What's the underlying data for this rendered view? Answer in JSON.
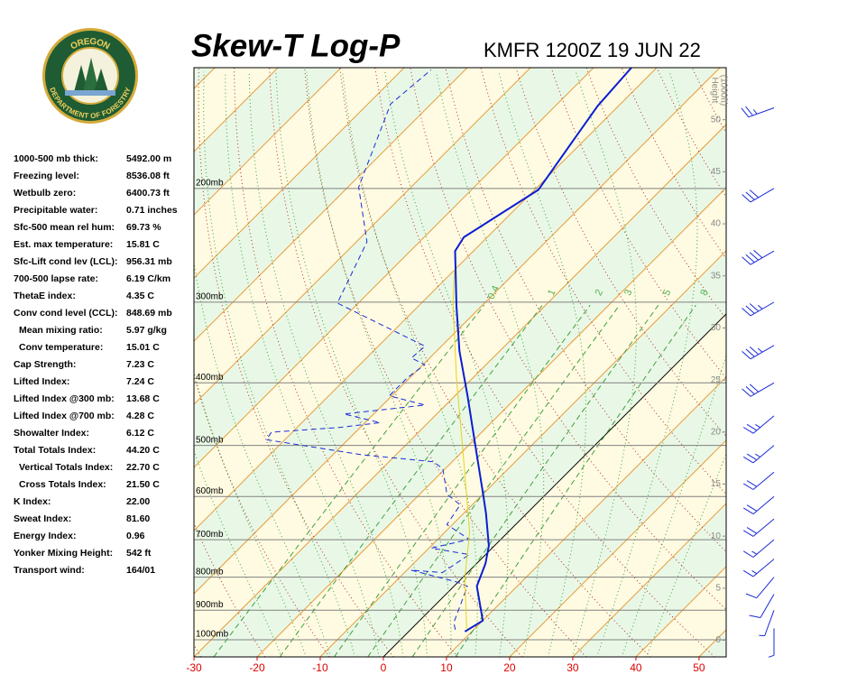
{
  "logo": {
    "top": "OREGON",
    "bottom": "DEPARTMENT OF FORESTRY"
  },
  "indices": [
    {
      "label": "1000-500 mb thick:",
      "value": "5492.00 m"
    },
    {
      "label": "Freezing level:",
      "value": "8536.08 ft"
    },
    {
      "label": "Wetbulb zero:",
      "value": "6400.73 ft"
    },
    {
      "label": "Precipitable water:",
      "value": "0.71 inches"
    },
    {
      "label": "Sfc-500 mean rel hum:",
      "value": "69.73 %"
    },
    {
      "label": "Est. max temperature:",
      "value": "15.81 C"
    },
    {
      "label": "Sfc-Lift cond lev (LCL):",
      "value": "956.31 mb"
    },
    {
      "label": "700-500 lapse rate:",
      "value": "6.19 C/km"
    },
    {
      "label": "ThetaE index:",
      "value": "4.35 C"
    },
    {
      "label": "Conv cond level (CCL):",
      "value": "848.69 mb"
    },
    {
      "label": "Mean mixing ratio:",
      "value": "5.97 g/kg",
      "indent": true
    },
    {
      "label": "Conv temperature:",
      "value": "15.01 C",
      "indent": true
    },
    {
      "label": "Cap Strength:",
      "value": "7.23 C"
    },
    {
      "label": "Lifted Index:",
      "value": "7.24 C"
    },
    {
      "label": "Lifted Index @300 mb:",
      "value": "13.68 C"
    },
    {
      "label": "Lifted Index @700 mb:",
      "value": "4.28 C"
    },
    {
      "label": "Showalter Index:",
      "value": "6.12 C"
    },
    {
      "label": "Total Totals Index:",
      "value": "44.20 C"
    },
    {
      "label": "Vertical Totals Index:",
      "value": "22.70 C",
      "indent": true
    },
    {
      "label": "Cross Totals Index:",
      "value": "21.50 C",
      "indent": true
    },
    {
      "label": "K Index:",
      "value": "22.00"
    },
    {
      "label": "Sweat Index:",
      "value": "81.60"
    },
    {
      "label": "Energy Index:",
      "value": "0.96"
    },
    {
      "label": "Yonker Mixing Height:",
      "value": "542 ft"
    },
    {
      "label": "Transport wind:",
      "value": "164/01"
    }
  ],
  "chart_data": {
    "type": "skewt",
    "title": "Skew-T Log-P",
    "subtitle": "KMFR 1200Z 19 JUN 22",
    "xlim": [
      -30,
      54.3
    ],
    "xticks": [
      -30,
      -20,
      -10,
      0,
      10,
      20,
      30,
      40,
      50
    ],
    "xtick_color": "#dd0000",
    "ylim": [
      1063,
      130
    ],
    "ylog": true,
    "yticks": [
      {
        "value": 1000,
        "label": "1000mb"
      },
      {
        "value": 900,
        "label": "900mb"
      },
      {
        "value": 800,
        "label": "800mb"
      },
      {
        "value": 700,
        "label": "700mb"
      },
      {
        "value": 600,
        "label": "600mb"
      },
      {
        "value": 500,
        "label": "500mb"
      },
      {
        "value": 400,
        "label": "400mb"
      },
      {
        "value": 300,
        "label": "300mb"
      },
      {
        "value": 200,
        "label": "200mb"
      }
    ],
    "y2label": [
      "Height",
      "(1000ft)"
    ],
    "y2lim": [
      -1.6,
      55
    ],
    "y2ticks": [
      0,
      5,
      10,
      15,
      20,
      25,
      30,
      35,
      40,
      45,
      50
    ],
    "mixing_ratio_labels": [
      0.4,
      1,
      2,
      3,
      5,
      8
    ],
    "series": [
      {
        "color": "#0a1ed2",
        "style": "solid",
        "width": 2,
        "pressure": [
          971,
          934,
          826,
          762,
          715,
          638,
          598,
          509,
          419,
          357,
          304,
          250,
          238,
          201,
          149,
          130
        ],
        "temperature": [
          8.9,
          10.0,
          3.6,
          1.4,
          -0.9,
          -6.4,
          -9.7,
          -18,
          -28,
          -36.4,
          -44,
          -52.9,
          -53.7,
          -49.4,
          -53.3,
          -54
        ]
      },
      {
        "color": "#1a2ad8",
        "style": "dashed",
        "width": 1,
        "pressure": [
          965,
          940,
          887,
          826,
          813,
          780,
          787,
          738,
          721,
          699,
          663,
          618,
          595,
          543,
          530,
          517,
          490,
          477,
          469,
          461,
          447,
          433,
          419,
          393,
          375,
          366,
          351,
          301,
          242,
          199,
          148,
          131
        ],
        "temperature": [
          7.1,
          5.7,
          4.1,
          2.1,
          -0.4,
          -9.4,
          -4,
          -2.6,
          -9.6,
          -5,
          -10.9,
          -11.9,
          -15.7,
          -20.4,
          -23,
          -35.4,
          -52.9,
          -53.3,
          -43.3,
          -37.6,
          -44.7,
          -33.3,
          -40.4,
          -40.4,
          -39.7,
          -42.9,
          -42.6,
          -63.3,
          -68.3,
          -78.3,
          -86.4,
          -85.4
        ]
      },
      {
        "color": "#e8d020",
        "style": "solid",
        "width": 1,
        "pressure": [
          965,
          800,
          681,
          509,
          393,
          303,
          267
        ],
        "temperature": [
          8.9,
          0.3,
          -6.1,
          -20.1,
          -32.6,
          -44.7,
          -50.1
        ]
      }
    ],
    "winds": {
      "pressure": [
        960,
        900,
        850,
        800,
        750,
        700,
        650,
        600,
        550,
        500,
        450,
        400,
        350,
        300,
        250,
        200,
        150
      ],
      "direction": [
        180,
        200,
        210,
        220,
        230,
        230,
        230,
        230,
        230,
        230,
        230,
        240,
        240,
        240,
        240,
        240,
        250
      ],
      "speed": [
        5,
        5,
        10,
        10,
        15,
        15,
        20,
        20,
        20,
        25,
        25,
        30,
        35,
        35,
        40,
        30,
        25
      ],
      "color": "#1a2ad8"
    }
  }
}
